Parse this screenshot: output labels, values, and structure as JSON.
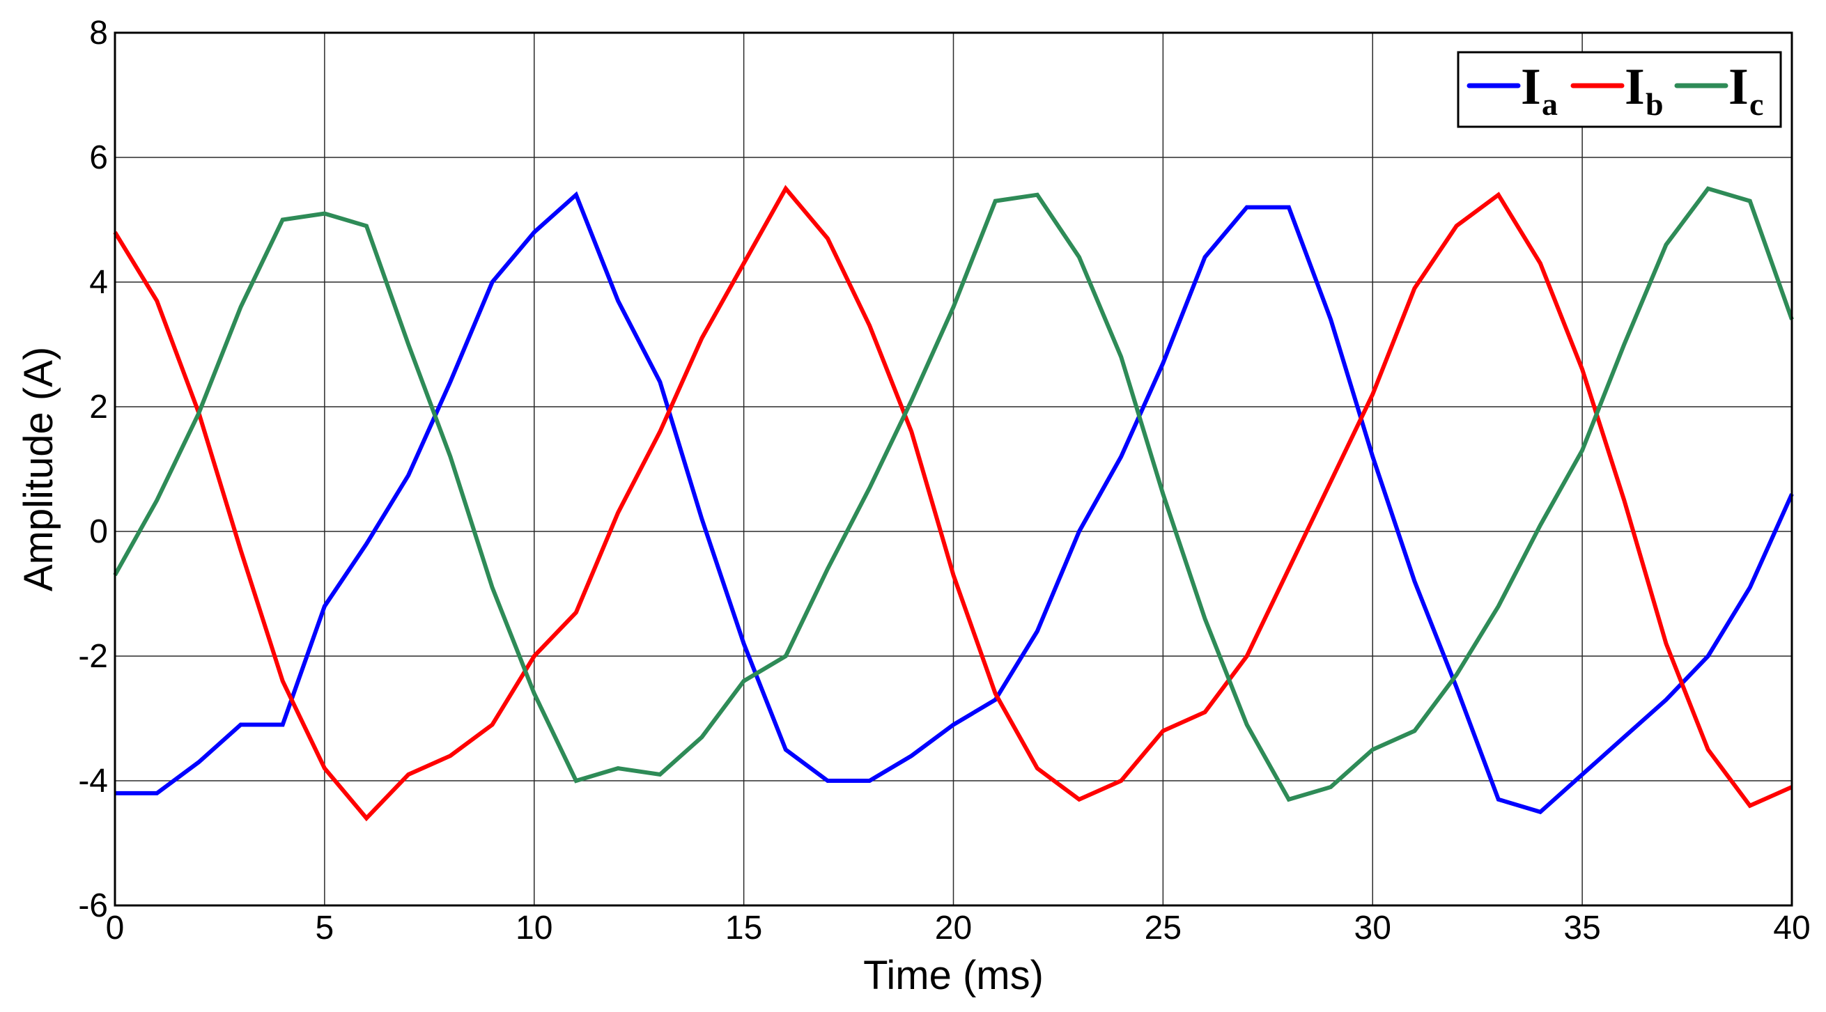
{
  "chart_data": {
    "type": "line",
    "title": "",
    "xlabel": "Time (ms)",
    "ylabel": "Amplitude (A)",
    "xlim": [
      0,
      40
    ],
    "ylim": [
      -6,
      8
    ],
    "xticks": [
      0,
      5,
      10,
      15,
      20,
      25,
      30,
      35,
      40
    ],
    "yticks": [
      -6,
      -4,
      -2,
      0,
      2,
      4,
      6,
      8
    ],
    "xtick_labels": [
      "0",
      "5",
      "10",
      "15",
      "20",
      "25",
      "30",
      "35",
      "40"
    ],
    "ytick_labels": [
      "-6",
      "-4",
      "-2",
      "0",
      "2",
      "4",
      "6",
      "8"
    ],
    "grid": true,
    "legend_position": "top-right",
    "x": [
      0,
      1,
      2,
      3,
      4,
      5,
      6,
      7,
      8,
      9,
      10,
      11,
      12,
      13,
      14,
      15,
      16,
      17,
      18,
      19,
      20,
      21,
      22,
      23,
      24,
      25,
      26,
      27,
      28,
      29,
      30,
      31,
      32,
      33,
      34,
      35,
      36,
      37,
      38,
      39,
      40
    ],
    "series": [
      {
        "name": "I",
        "name_sub": "a",
        "color": "#0000ff",
        "values": [
          -4.2,
          -4.2,
          -3.7,
          -3.1,
          -3.1,
          -1.2,
          -0.2,
          0.9,
          2.4,
          4.0,
          4.8,
          5.4,
          3.7,
          2.4,
          0.2,
          -1.8,
          -3.5,
          -4.0,
          -4.0,
          -3.6,
          -3.1,
          -2.7,
          -1.6,
          0.0,
          1.2,
          2.7,
          4.4,
          5.2,
          5.2,
          3.4,
          1.2,
          -0.8,
          -2.5,
          -4.3,
          -4.5,
          -3.9,
          -3.3,
          -2.7,
          -2.0,
          -0.9,
          0.6
        ]
      },
      {
        "name": "I",
        "name_sub": "b",
        "color": "#ff0000",
        "values": [
          4.8,
          3.7,
          1.9,
          -0.3,
          -2.4,
          -3.8,
          -4.6,
          -3.9,
          -3.6,
          -3.1,
          -2.0,
          -1.3,
          0.3,
          1.6,
          3.1,
          4.3,
          5.5,
          4.7,
          3.3,
          1.6,
          -0.7,
          -2.6,
          -3.8,
          -4.3,
          -4.0,
          -3.2,
          -2.9,
          -2.0,
          -0.6,
          0.8,
          2.2,
          3.9,
          4.9,
          5.4,
          4.3,
          2.6,
          0.5,
          -1.8,
          -3.5,
          -4.4,
          -4.1
        ]
      },
      {
        "name": "I",
        "name_sub": "c",
        "color": "#2e8b57",
        "values": [
          -0.7,
          0.5,
          1.9,
          3.6,
          5.0,
          5.1,
          4.9,
          3.0,
          1.2,
          -0.9,
          -2.6,
          -4.0,
          -3.8,
          -3.9,
          -3.3,
          -2.4,
          -2.0,
          -0.6,
          0.7,
          2.1,
          3.6,
          5.3,
          5.4,
          4.4,
          2.8,
          0.6,
          -1.4,
          -3.1,
          -4.3,
          -4.1,
          -3.5,
          -3.2,
          -2.3,
          -1.2,
          0.1,
          1.3,
          3.0,
          4.6,
          5.5,
          5.3,
          3.4
        ]
      }
    ]
  }
}
